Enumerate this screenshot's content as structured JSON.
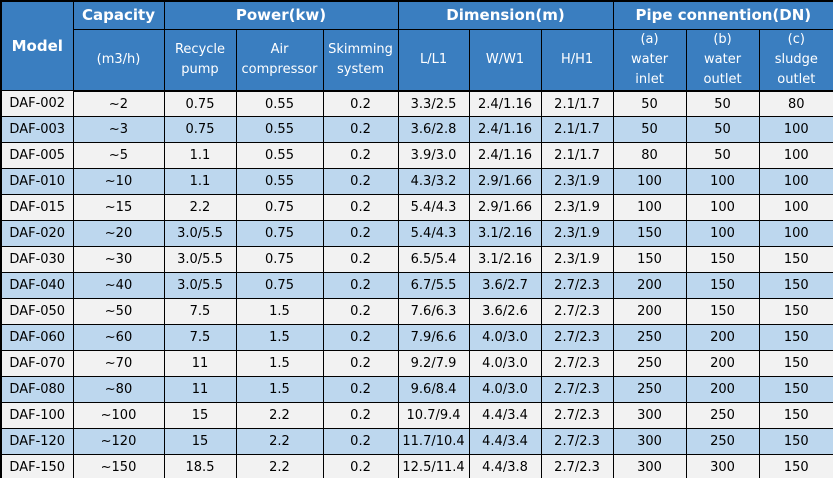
{
  "colors": {
    "header_bg": "#3A7EC0",
    "header_text": "#FFFFFF",
    "row_bg": "#F2F2F2",
    "row_alt_bg": "#BDD7EE",
    "border": "#000000",
    "data_text": "#000000"
  },
  "table": {
    "groups": [
      {
        "label": "Model"
      },
      {
        "label": "Capacity"
      },
      {
        "label": "Power(kw)"
      },
      {
        "label": "Dimension(m)"
      },
      {
        "label": "Pipe connention(DN)"
      }
    ],
    "sub_headers": [
      "(m3/h)",
      "Recycle\npump",
      "Air\ncompressor",
      "Skimming\nsystem",
      "L/L1",
      "W/W1",
      "H/H1",
      "(a)\nwater\ninlet",
      "(b)\nwater\noutlet",
      "(c)\nsludge\noutlet"
    ],
    "rows": [
      [
        "DAF-002",
        "~2",
        "0.75",
        "0.55",
        "0.2",
        "3.3/2.5",
        "2.4/1.16",
        "2.1/1.7",
        "50",
        "50",
        "80"
      ],
      [
        "DAF-003",
        "~3",
        "0.75",
        "0.55",
        "0.2",
        "3.6/2.8",
        "2.4/1.16",
        "2.1/1.7",
        "50",
        "50",
        "100"
      ],
      [
        "DAF-005",
        "~5",
        "1.1",
        "0.55",
        "0.2",
        "3.9/3.0",
        "2.4/1.16",
        "2.1/1.7",
        "80",
        "50",
        "100"
      ],
      [
        "DAF-010",
        "~10",
        "1.1",
        "0.55",
        "0.2",
        "4.3/3.2",
        "2.9/1.66",
        "2.3/1.9",
        "100",
        "100",
        "100"
      ],
      [
        "DAF-015",
        "~15",
        "2.2",
        "0.75",
        "0.2",
        "5.4/4.3",
        "2.9/1.66",
        "2.3/1.9",
        "100",
        "100",
        "100"
      ],
      [
        "DAF-020",
        "~20",
        "3.0/5.5",
        "0.75",
        "0.2",
        "5.4/4.3",
        "3.1/2.16",
        "2.3/1.9",
        "150",
        "100",
        "100"
      ],
      [
        "DAF-030",
        "~30",
        "3.0/5.5",
        "0.75",
        "0.2",
        "6.5/5.4",
        "3.1/2.16",
        "2.3/1.9",
        "150",
        "150",
        "150"
      ],
      [
        "DAF-040",
        "~40",
        "3.0/5.5",
        "0.75",
        "0.2",
        "6.7/5.5",
        "3.6/2.7",
        "2.7/2.3",
        "200",
        "150",
        "150"
      ],
      [
        "DAF-050",
        "~50",
        "7.5",
        "1.5",
        "0.2",
        "7.6/6.3",
        "3.6/2.6",
        "2.7/2.3",
        "200",
        "150",
        "150"
      ],
      [
        "DAF-060",
        "~60",
        "7.5",
        "1.5",
        "0.2",
        "7.9/6.6",
        "4.0/3.0",
        "2.7/2.3",
        "250",
        "200",
        "150"
      ],
      [
        "DAF-070",
        "~70",
        "11",
        "1.5",
        "0.2",
        "9.2/7.9",
        "4.0/3.0",
        "2.7/2.3",
        "250",
        "200",
        "150"
      ],
      [
        "DAF-080",
        "~80",
        "11",
        "1.5",
        "0.2",
        "9.6/8.4",
        "4.0/3.0",
        "2.7/2.3",
        "250",
        "200",
        "150"
      ],
      [
        "DAF-100",
        "~100",
        "15",
        "2.2",
        "0.2",
        "10.7/9.4",
        "4.4/3.4",
        "2.7/2.3",
        "300",
        "250",
        "150"
      ],
      [
        "DAF-120",
        "~120",
        "15",
        "2.2",
        "0.2",
        "11.7/10.4",
        "4.4/3.4",
        "2.7/2.3",
        "300",
        "250",
        "150"
      ],
      [
        "DAF-150",
        "~150",
        "18.5",
        "2.2",
        "0.2",
        "12.5/11.4",
        "4.4/3.8",
        "2.7/2.3",
        "300",
        "300",
        "150"
      ]
    ]
  }
}
